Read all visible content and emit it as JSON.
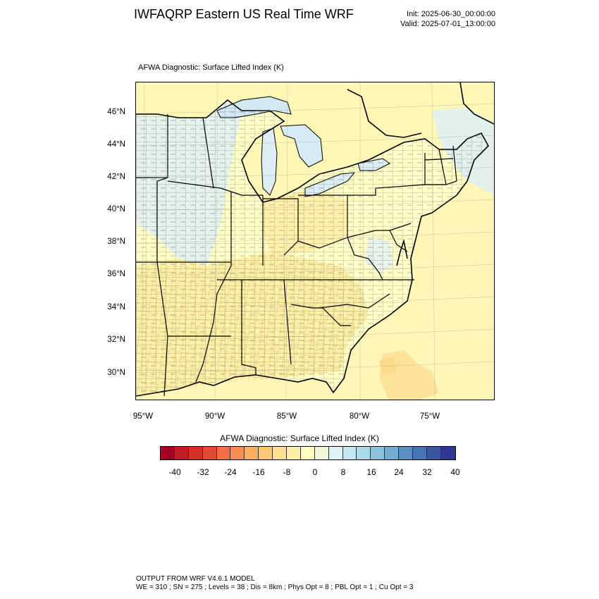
{
  "title": "IWFAQRP Eastern US Real Time WRF",
  "init_text": "Init: 2025-06-30_00:00:00",
  "valid_text": "Valid: 2025-07-01_13:00:00",
  "map_subtitle": "AFWA Diagnostic: Surface Lifted Index   (K)",
  "latitude_labels": [
    "46°N",
    "44°N",
    "42°N",
    "40°N",
    "38°N",
    "36°N",
    "34°N",
    "32°N",
    "30°N"
  ],
  "longitude_labels": [
    "95°W",
    "90°W",
    "85°W",
    "80°W",
    "75°W"
  ],
  "colorbar": {
    "title": "AFWA Diagnostic: Surface Lifted Index  (K)",
    "tick_labels": [
      "-40",
      "-32",
      "-24",
      "-16",
      "-8",
      "0",
      "8",
      "16",
      "24",
      "32",
      "40"
    ],
    "colors": [
      "#a50026",
      "#c21c27",
      "#d73027",
      "#e34a33",
      "#f46d43",
      "#f88d51",
      "#fdae61",
      "#fec776",
      "#fee090",
      "#fff0a8",
      "#ffffbf",
      "#eef8d8",
      "#e0f3f8",
      "#c5e6f0",
      "#abd9e9",
      "#8fc3dd",
      "#74add1",
      "#5b8fc3",
      "#4575b4",
      "#3b56a3",
      "#313695"
    ]
  },
  "footer": {
    "line1": "OUTPUT FROM WRF V4.6.1 MODEL",
    "line2": "WE = 310 ; SN = 275 ; Levels = 38 ; Dis = 8km ; Phys Opt = 8 ; PBL Opt = 1 ; Cu Opt = 3"
  },
  "colors": {
    "land_warm": "#fff3b0",
    "land_neutral": "#ffffcc",
    "land_cool": "#e6f3ee",
    "lake_blue": "#d4eaf3",
    "ocean": "#fff6b8",
    "ocean_warm": "#fde29a",
    "boundary": "#000000"
  }
}
